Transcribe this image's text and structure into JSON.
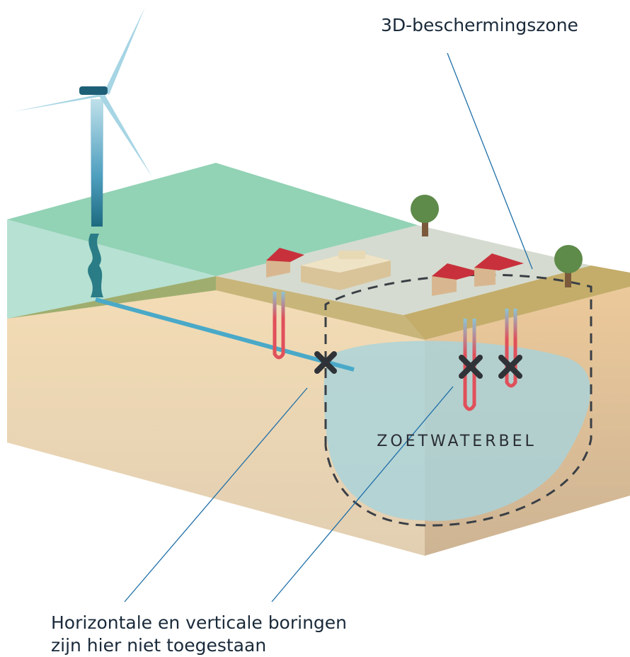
{
  "labels": {
    "protection_zone": "3D-beschermingszone",
    "bubble": "ZOETWATERBEL",
    "caption": [
      "Horizontale en verticale boringen",
      "zijn hier niet toegestaan"
    ]
  }
}
